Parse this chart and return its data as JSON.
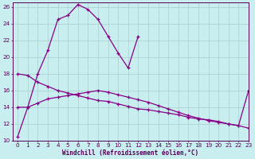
{
  "xlabel": "Windchill (Refroidissement éolien,°C)",
  "background_color": "#c8eef0",
  "line_color": "#880088",
  "grid_color": "#aacccc",
  "xlim": [
    -0.5,
    23
  ],
  "ylim": [
    10,
    26.5
  ],
  "yticks": [
    10,
    12,
    14,
    16,
    18,
    20,
    22,
    24,
    26
  ],
  "xticks": [
    0,
    1,
    2,
    3,
    4,
    5,
    6,
    7,
    8,
    9,
    10,
    11,
    12,
    13,
    14,
    15,
    16,
    17,
    18,
    19,
    20,
    21,
    22,
    23
  ],
  "series1_x": [
    0,
    1,
    2,
    3,
    4,
    5,
    6,
    7,
    8,
    9,
    10,
    11,
    12
  ],
  "series1_y": [
    10.5,
    14.0,
    18.0,
    20.8,
    24.5,
    25.0,
    26.3,
    25.7,
    24.5,
    22.5,
    20.5,
    18.7,
    22.5
  ],
  "series2_x": [
    0,
    1,
    2,
    3,
    4,
    5,
    6,
    7,
    8,
    9,
    10,
    11,
    12,
    13,
    14,
    15,
    16,
    17,
    18,
    19,
    20,
    21,
    22,
    23
  ],
  "series2_y": [
    14.0,
    14.0,
    14.5,
    15.0,
    15.2,
    15.4,
    15.6,
    15.8,
    16.0,
    15.8,
    15.5,
    15.2,
    14.9,
    14.6,
    14.2,
    13.8,
    13.4,
    13.0,
    12.7,
    12.4,
    12.2,
    12.0,
    11.8,
    16.0
  ],
  "series3_x": [
    0,
    1,
    2,
    3,
    4,
    5,
    6,
    7,
    8,
    9,
    10,
    11,
    12,
    13,
    14,
    15,
    16,
    17,
    18,
    19,
    20,
    21,
    22,
    23
  ],
  "series3_y": [
    18.0,
    17.8,
    17.0,
    16.5,
    16.0,
    15.7,
    15.4,
    15.1,
    14.8,
    14.7,
    14.4,
    14.1,
    13.8,
    13.7,
    13.5,
    13.3,
    13.1,
    12.8,
    12.6,
    12.5,
    12.3,
    12.0,
    11.8,
    11.5
  ]
}
